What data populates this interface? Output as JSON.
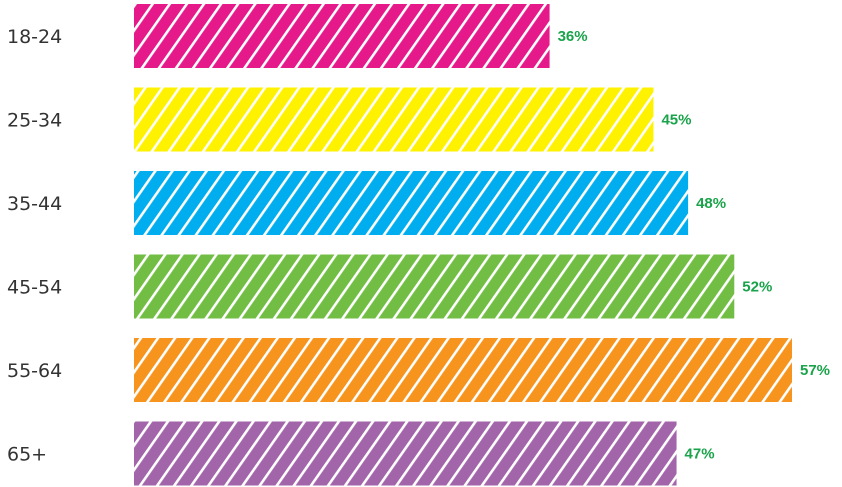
{
  "chart_data": {
    "type": "bar",
    "orientation": "horizontal",
    "categories": [
      "18-24",
      "25-34",
      "35-44",
      "45-54",
      "55-64",
      "65+"
    ],
    "values": [
      36,
      45,
      48,
      52,
      57,
      47
    ],
    "value_labels": [
      "36%",
      "45%",
      "48%",
      "52%",
      "57%",
      "47%"
    ],
    "bar_colors": [
      "#e5198a",
      "#fff200",
      "#00aeef",
      "#72be44",
      "#f7941d",
      "#a265aa"
    ],
    "value_label_color": "#1aa34a",
    "bar_fill_pattern": "white diagonal stripes",
    "title": "",
    "xlabel": "",
    "ylabel": "",
    "xlim": [
      0,
      57
    ],
    "grid": false,
    "legend": "none"
  }
}
